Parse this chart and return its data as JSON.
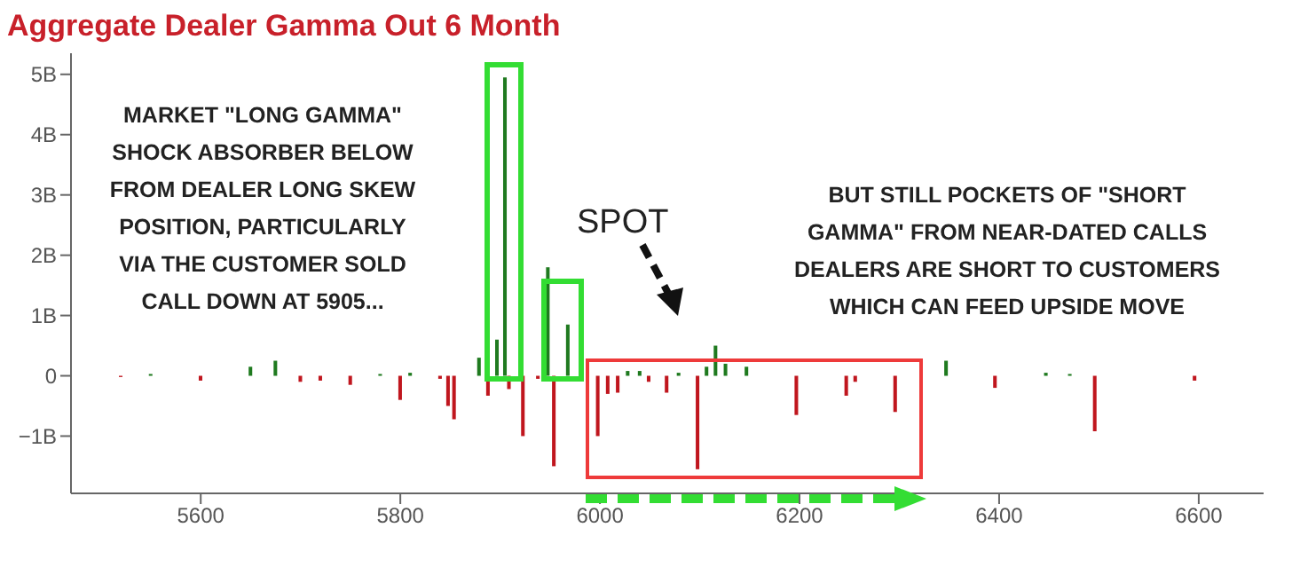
{
  "chart_data": {
    "type": "bar",
    "title": "Aggregate Dealer Gamma Out 6 Month",
    "x": [
      5520,
      5550,
      5600,
      5650,
      5675,
      5700,
      5720,
      5750,
      5780,
      5800,
      5810,
      5840,
      5848,
      5854,
      5879,
      5888,
      5897,
      5905,
      5909,
      5923,
      5938,
      5948,
      5954,
      5968,
      5998,
      6008,
      6018,
      6028,
      6040,
      6049,
      6067,
      6079,
      6098,
      6107,
      6116,
      6126,
      6147,
      6197,
      6247,
      6256,
      6296,
      6347,
      6396,
      6447,
      6471,
      6496,
      6596
    ],
    "values": [
      -0.02,
      0.03,
      -0.08,
      0.15,
      0.25,
      -0.1,
      -0.08,
      -0.15,
      0.03,
      -0.4,
      0.05,
      -0.05,
      -0.5,
      -0.72,
      0.3,
      -0.33,
      0.6,
      4.95,
      -0.22,
      -1.0,
      -0.05,
      1.8,
      -1.5,
      0.85,
      -1.0,
      -0.3,
      -0.28,
      0.08,
      0.08,
      -0.1,
      -0.28,
      0.05,
      -1.55,
      0.15,
      0.5,
      0.2,
      0.15,
      -0.65,
      -0.33,
      -0.1,
      -0.6,
      0.25,
      -0.2,
      0.05,
      0.03,
      -0.92,
      -0.08
    ],
    "colors": [
      "#c0161e",
      "#1f7a1f",
      "#c0161e",
      "#1f7a1f",
      "#1f7a1f",
      "#c0161e",
      "#c0161e",
      "#c0161e",
      "#1f7a1f",
      "#c0161e",
      "#1f7a1f",
      "#c0161e",
      "#c0161e",
      "#c0161e",
      "#1f7a1f",
      "#c0161e",
      "#1f7a1f",
      "#1f7a1f",
      "#c0161e",
      "#c0161e",
      "#c0161e",
      "#1f7a1f",
      "#c0161e",
      "#1f7a1f",
      "#c0161e",
      "#c0161e",
      "#c0161e",
      "#1f7a1f",
      "#1f7a1f",
      "#c0161e",
      "#c0161e",
      "#1f7a1f",
      "#c0161e",
      "#1f7a1f",
      "#1f7a1f",
      "#1f7a1f",
      "#1f7a1f",
      "#c0161e",
      "#c0161e",
      "#c0161e",
      "#c0161e",
      "#1f7a1f",
      "#c0161e",
      "#1f7a1f",
      "#1f7a1f",
      "#c0161e",
      "#c0161e"
    ],
    "xlim": [
      5470,
      6665
    ],
    "xticks": [
      5600,
      5800,
      6000,
      6200,
      6400,
      6600
    ],
    "ylim": [
      -1.95,
      5.35
    ],
    "yticks": [
      {
        "value": -1,
        "label": "−1B"
      },
      {
        "value": 0,
        "label": "0"
      },
      {
        "value": 1,
        "label": "1B"
      },
      {
        "value": 2,
        "label": "2B"
      },
      {
        "value": 3,
        "label": "3B"
      },
      {
        "value": 4,
        "label": "4B"
      },
      {
        "value": 5,
        "label": "5B"
      }
    ],
    "grid": false,
    "legend": false,
    "annotations": [
      "MARKET \"LONG GAMMA\" SHOCK ABSORBER BELOW FROM DEALER LONG SKEW POSITION, PARTICULARLY VIA THE CUSTOMER SOLD CALL DOWN AT 5905...",
      "SPOT",
      "BUT STILL POCKETS OF \"SHORT GAMMA\" FROM NEAR-DATED CALLS DEALERS ARE SHORT TO CUSTOMERS WHICH CAN FEED UPSIDE MOVE"
    ]
  }
}
